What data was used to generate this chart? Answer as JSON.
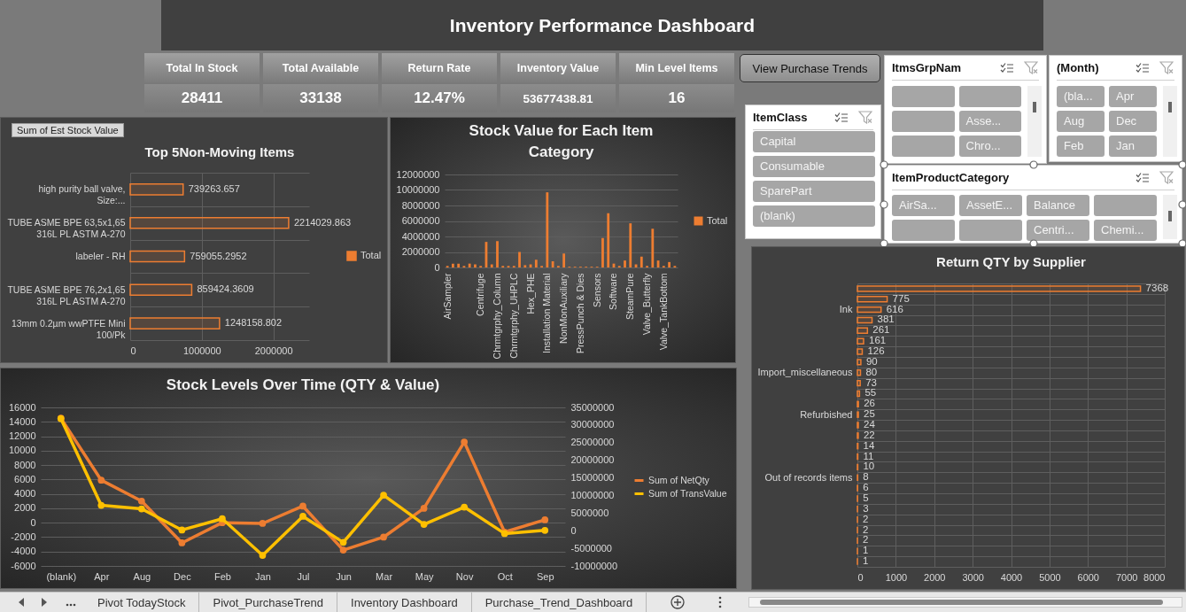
{
  "chart_data": [
    {
      "type": "other",
      "title": "Inventory Performance Dashboard",
      "categories": [
        "Total In Stock",
        "Total Available",
        "Return Rate",
        "Inventory Value",
        "Min Level Items"
      ],
      "value_labels": [
        "28411",
        "33138",
        "12.47%",
        "53677438.81",
        "16"
      ]
    },
    {
      "type": "other",
      "annotations": [
        "View Purchase Trends"
      ]
    },
    {
      "type": "other",
      "title": "ItemClass",
      "categories": [
        "Capital",
        "Consumable",
        "SparePart",
        "(blank)"
      ]
    },
    {
      "type": "other",
      "title": "ItmsGrpNam",
      "categories": [
        null,
        null,
        null,
        "Asse...",
        null,
        "Chro..."
      ]
    },
    {
      "type": "other",
      "title": "(Month)",
      "categories": [
        "(bla...",
        "Apr",
        "Aug",
        "Dec",
        "Feb",
        "Jan"
      ]
    },
    {
      "type": "other",
      "title": "ItemProductCategory",
      "categories": [
        "AirSa...",
        "AssetE...",
        "Balance",
        null,
        null,
        null,
        "Centri...",
        "Chemi..."
      ]
    },
    {
      "type": "bar",
      "orientation": "horizontal",
      "title": "Top  5Non-Moving Items",
      "categories": [
        "high purity ball valve, Size:...",
        "TUBE ASME BPE 63,5x1,65 316L PL ASTM A-270",
        "labeler - RH",
        "TUBE ASME BPE 76,2x1,65 316L PL ASTM A-270",
        "13mm 0.2µm wwPTFE Mini 100/Pk"
      ],
      "series": [
        {
          "name": "Total",
          "color": "#ed7d31",
          "values": [
            739263.657,
            2214029.863,
            759055.2952,
            859424.3609,
            1248158.802
          ]
        }
      ],
      "xlim": [
        0,
        2500000
      ],
      "xticks": [
        0,
        1000000,
        2000000
      ],
      "grid": true,
      "legend": "right",
      "data_labels": true,
      "annotations": [
        "Sum of Est Stock Value"
      ]
    },
    {
      "type": "bar",
      "title": "Stock Value for Each Item Category",
      "categories": [
        "AirSampler",
        null,
        null,
        null,
        null,
        null,
        "Centrifuge",
        null,
        null,
        "Chrmtgrphy_Column",
        null,
        null,
        "Chrmtgrphy_UHPLC",
        null,
        null,
        "Hex_PHE",
        null,
        null,
        "Installation Material",
        null,
        null,
        "NonMonAuxiliary",
        null,
        null,
        "PressPunch & Dies",
        null,
        null,
        "Sensors",
        null,
        null,
        "Software",
        null,
        null,
        "SteamPure",
        null,
        null,
        "Valve_Butterfly",
        null,
        null,
        "Valve_TankBottom",
        null,
        null
      ],
      "series": [
        {
          "name": "Total",
          "color": "#ed7d31",
          "values": [
            200000,
            500000,
            500000,
            200000,
            500000,
            400000,
            200000,
            3300000,
            400000,
            3400000,
            200000,
            200000,
            200000,
            2000000,
            300000,
            400000,
            1000000,
            200000,
            9700000,
            800000,
            200000,
            1800000,
            100000,
            100000,
            100000,
            100000,
            100000,
            100000,
            3800000,
            7000000,
            500000,
            200000,
            900000,
            5700000,
            400000,
            1400000,
            200000,
            5000000,
            900000,
            200000,
            700000,
            200000
          ]
        }
      ],
      "ylim": [
        0,
        12000000
      ],
      "yticks": [
        0,
        2000000,
        4000000,
        6000000,
        8000000,
        10000000,
        12000000
      ],
      "grid": "y",
      "legend": "right"
    },
    {
      "type": "bar",
      "orientation": "horizontal",
      "title": "Return QTY by Supplier",
      "categories": [
        null,
        null,
        "Ink",
        null,
        null,
        null,
        null,
        null,
        "Import_miscellaneous",
        null,
        null,
        null,
        "Refurbished",
        null,
        null,
        null,
        null,
        null,
        "Out of records items",
        null,
        null,
        null,
        null,
        null,
        null,
        null,
        null
      ],
      "values": [
        7368,
        775,
        616,
        381,
        261,
        161,
        126,
        90,
        80,
        73,
        55,
        26,
        25,
        24,
        22,
        14,
        11,
        10,
        8,
        6,
        5,
        3,
        2,
        2,
        2,
        1,
        1
      ],
      "color": "#ed7d31",
      "xlim": [
        0,
        8000
      ],
      "xticks": [
        0,
        1000,
        2000,
        3000,
        4000,
        5000,
        6000,
        7000,
        8000
      ],
      "grid": true,
      "data_labels": true
    },
    {
      "type": "line",
      "title": "Stock Levels Over Time (QTY & Value)",
      "categories": [
        "(blank)",
        "Apr",
        "Aug",
        "Dec",
        "Feb",
        "Jan",
        "Jul",
        "Jun",
        "Mar",
        "May",
        "Nov",
        "Oct",
        "Sep"
      ],
      "series": [
        {
          "name": "Sum of NetQty",
          "color": "#ed7d31",
          "values": [
            14500,
            5900,
            3000,
            -2800,
            0,
            -100,
            2300,
            -3800,
            -2000,
            2000,
            11200,
            -1300,
            400
          ]
        },
        {
          "name": "Sum of TransValue",
          "color": "#ffc000",
          "axis": "y2",
          "values": [
            31800000,
            7200000,
            6200000,
            200000,
            3400000,
            -7000000,
            4100000,
            -3300000,
            10100000,
            1800000,
            6700000,
            -800000,
            100000
          ]
        }
      ],
      "ylim": [
        -6000,
        16000
      ],
      "yticks": [
        -6000,
        -4000,
        -2000,
        0,
        2000,
        4000,
        6000,
        8000,
        10000,
        12000,
        14000,
        16000
      ],
      "y2lim": [
        -10000000,
        35000000
      ],
      "y2ticks": [
        -10000000,
        -5000000,
        0,
        5000000,
        10000000,
        15000000,
        20000000,
        25000000,
        30000000,
        35000000
      ],
      "grid": "y",
      "legend": "right",
      "marker": "circle"
    },
    {
      "type": "other",
      "categories": [
        "Pivot TodayStock",
        "Pivot_PurchaseTrend",
        "Inventory Dashboard",
        "Purchase_Trend_Dashboard"
      ]
    }
  ]
}
